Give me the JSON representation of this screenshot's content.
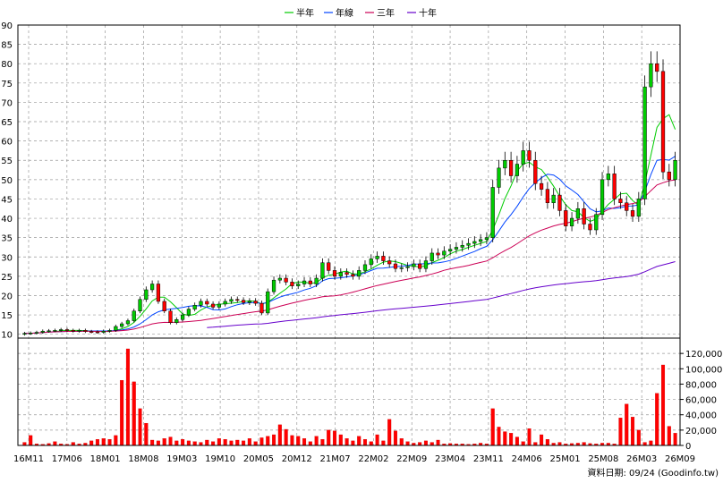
{
  "chart_data": [
    {
      "type": "candlestick",
      "legend": [
        {
          "name": "半年",
          "color": "#00cc00"
        },
        {
          "name": "年線",
          "color": "#0044ff"
        },
        {
          "name": "三年",
          "color": "#cc0055"
        },
        {
          "name": "十年",
          "color": "#6600cc"
        }
      ],
      "legend_position": "top-center",
      "ylim": [
        9,
        90
      ],
      "yticks": [
        10,
        15,
        20,
        25,
        30,
        35,
        40,
        45,
        50,
        55,
        60,
        65,
        70,
        75,
        80,
        85,
        90
      ],
      "grid": true,
      "x_labels": [
        "16M11",
        "17M06",
        "18M01",
        "18M08",
        "19M03",
        "19M10",
        "20M05",
        "20M12",
        "21M07",
        "22M02",
        "22M09",
        "23M04",
        "23M11",
        "24M06",
        "25M01",
        "25M08",
        "26M03",
        "26M09"
      ],
      "up_color": "#00cc00",
      "down_color": "#ff0000",
      "close": [
        10.2,
        10.3,
        10.5,
        10.8,
        10.9,
        11.0,
        11.2,
        11.0,
        10.8,
        11.0,
        10.7,
        10.6,
        10.5,
        10.8,
        11.0,
        12.0,
        12.7,
        13.5,
        16.0,
        19.0,
        21.5,
        23.0,
        18.5,
        16.0,
        13.0,
        13.8,
        15.0,
        16.5,
        17.5,
        18.5,
        17.8,
        17.0,
        17.8,
        18.5,
        19.0,
        18.8,
        18.2,
        18.6,
        18.0,
        15.5,
        21.0,
        24.0,
        24.5,
        23.5,
        22.5,
        23.0,
        23.8,
        23.0,
        24.5,
        28.5,
        26.5,
        25.0,
        26.0,
        25.5,
        25.0,
        26.5,
        28.0,
        29.5,
        30.2,
        29.0,
        28.2,
        27.0,
        27.2,
        27.5,
        28.2,
        27.0,
        29.0,
        31.0,
        30.5,
        31.5,
        32.0,
        32.5,
        33.0,
        33.5,
        34.0,
        34.5,
        35.0,
        48.0,
        53.0,
        55.0,
        51.0,
        54.0,
        57.5,
        55.0,
        49.0,
        47.5,
        44.0,
        46.0,
        42.0,
        38.0,
        40.0,
        42.5,
        38.5,
        37.0,
        41.0,
        50.0,
        51.5,
        45.0,
        44.0,
        42.0,
        40.5,
        45.0,
        74.0,
        80.0,
        78.0,
        52.0,
        50.0,
        55.0
      ],
      "volume": [
        4000,
        13000,
        2000,
        1500,
        2500,
        5000,
        2000,
        1500,
        4000,
        2000,
        3000,
        6000,
        8000,
        9000,
        8000,
        13000,
        85000,
        126000,
        83000,
        48000,
        29000,
        7000,
        6000,
        9000,
        11000,
        6000,
        8000,
        6000,
        5000,
        4000,
        7000,
        5000,
        9000,
        8000,
        6000,
        7000,
        6000,
        9000,
        5000,
        10000,
        12000,
        14000,
        27000,
        21000,
        13000,
        12000,
        9000,
        5000,
        12000,
        8000,
        20000,
        19000,
        14000,
        9000,
        6000,
        12000,
        8000,
        5000,
        14000,
        6000,
        34000,
        19000,
        9000,
        5000,
        3000,
        4000,
        6000,
        4000,
        7000,
        2000,
        2500,
        2000,
        2000,
        1500,
        2000,
        3000,
        2000,
        48000,
        24000,
        18000,
        16000,
        11000,
        5000,
        22000,
        4000,
        14000,
        8000,
        3000,
        4000,
        2000,
        2500,
        3000,
        4000,
        2500,
        2000,
        3000,
        3000,
        2000,
        36000,
        54000,
        37000,
        20000,
        4000,
        6000,
        68000,
        105000,
        25000,
        16000
      ]
    },
    {
      "type": "bar",
      "yticks": [
        0,
        20000,
        40000,
        60000,
        80000,
        100000,
        120000
      ],
      "ytick_labels": [
        "0",
        "20,000",
        "40,000",
        "60,000",
        "80,000",
        "100,000",
        "120,000"
      ],
      "ylim": [
        0,
        140000
      ]
    }
  ],
  "footer": {
    "text": "資料日期: 09/24  (Goodinfo.tw)"
  }
}
